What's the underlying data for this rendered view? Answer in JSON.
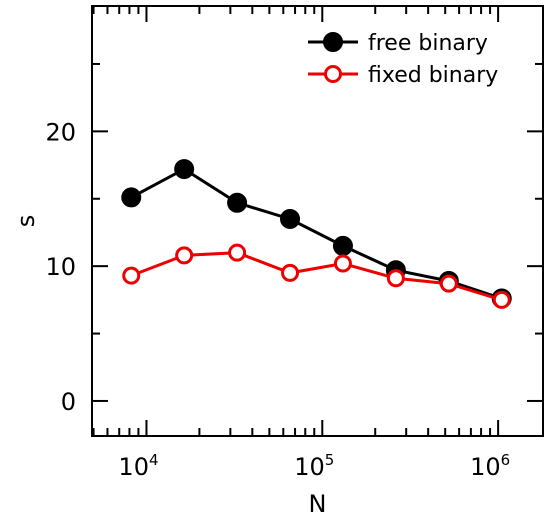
{
  "chart_data": {
    "type": "line",
    "xlabel": "N",
    "ylabel": "s",
    "x_scale": "log",
    "xlim": [
      4900,
      1800000
    ],
    "ylim": [
      -2.6,
      29.3
    ],
    "x_ticks": [
      {
        "value": 10000,
        "base": "10",
        "exp": "4"
      },
      {
        "value": 100000,
        "base": "10",
        "exp": "5"
      },
      {
        "value": 1000000,
        "base": "10",
        "exp": "6"
      }
    ],
    "y_ticks": [
      {
        "value": 0,
        "label": "0"
      },
      {
        "value": 10,
        "label": "10"
      },
      {
        "value": 20,
        "label": "20"
      }
    ],
    "legend_position": "top-right",
    "grid": false,
    "series": [
      {
        "name": "free binary",
        "color": "#000000",
        "marker": "filled-circle",
        "x": [
          8192,
          16384,
          32768,
          65536,
          131072,
          262144,
          524288,
          1048576
        ],
        "y": [
          15.1,
          17.2,
          14.7,
          13.5,
          11.5,
          9.7,
          8.9,
          7.6
        ]
      },
      {
        "name": "fixed binary",
        "color": "#ee0000",
        "marker": "open-circle",
        "x": [
          8192,
          16384,
          32768,
          65536,
          131072,
          262144,
          524288,
          1048576
        ],
        "y": [
          9.3,
          10.8,
          11.0,
          9.5,
          10.2,
          9.1,
          8.7,
          7.5
        ]
      }
    ]
  }
}
